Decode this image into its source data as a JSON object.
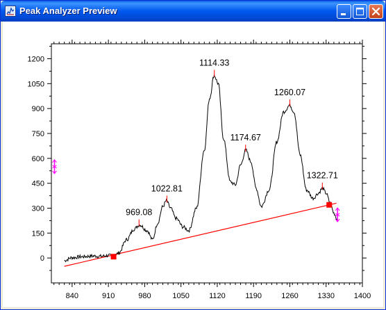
{
  "window": {
    "title": "Peak Analyzer Preview"
  },
  "icons": {
    "app": "peak-analyzer-icon",
    "minimize": "minimize-icon",
    "maximize": "maximize-icon",
    "close": "close-icon"
  },
  "colors": {
    "titlebar": "#0058ee",
    "spectrum": "#000000",
    "baseline": "#ff0000",
    "anchor": "#ff0000",
    "peak_marker": "#ff0000",
    "roi_marker": "#ff00ff"
  },
  "chart_data": {
    "type": "line",
    "title": "",
    "xlabel": "",
    "ylabel": "",
    "xlim": [
      800,
      1400
    ],
    "ylim": [
      -150,
      1290
    ],
    "x_ticks": [
      840,
      910,
      980,
      1050,
      1120,
      1190,
      1260,
      1330,
      1400
    ],
    "y_ticks": [
      0,
      150,
      300,
      450,
      600,
      750,
      900,
      1050,
      1200
    ],
    "grid": false,
    "series": [
      {
        "x": [
          825,
          840,
          860,
          880,
          895,
          910,
          920,
          930,
          945,
          960,
          970,
          985,
          995,
          1005,
          1015,
          1022,
          1030,
          1040,
          1055,
          1065,
          1080,
          1095,
          1105,
          1114,
          1122,
          1132,
          1145,
          1155,
          1165,
          1175,
          1185,
          1195,
          1205,
          1220,
          1235,
          1248,
          1260,
          1268,
          1280,
          1292,
          1305,
          1315,
          1323,
          1330,
          1338,
          1345,
          1352
        ],
        "y": [
          -15,
          2,
          8,
          12,
          10,
          15,
          10,
          30,
          110,
          175,
          200,
          165,
          110,
          210,
          310,
          345,
          300,
          240,
          185,
          165,
          300,
          650,
          960,
          1100,
          1050,
          720,
          460,
          440,
          560,
          650,
          580,
          420,
          310,
          410,
          700,
          880,
          920,
          880,
          620,
          410,
          360,
          390,
          420,
          390,
          330,
          270,
          230
        ]
      },
      {
        "x": [
          825,
          1350
        ],
        "y": [
          -50,
          330
        ]
      }
    ],
    "peaks": [
      {
        "x": 969.08,
        "label": "969.08"
      },
      {
        "x": 1022.81,
        "label": "1022.81"
      },
      {
        "x": 1114.33,
        "label": "1114.33"
      },
      {
        "x": 1174.67,
        "label": "1174.67"
      },
      {
        "x": 1260.07,
        "label": "1260.07"
      },
      {
        "x": 1322.71,
        "label": "1322.71"
      }
    ],
    "anchors": [
      {
        "x": 920,
        "y": 8
      },
      {
        "x": 1336,
        "y": 320
      }
    ],
    "roi": [
      {
        "x": 806,
        "y": 550
      },
      {
        "x": 1352,
        "y": 260
      }
    ]
  }
}
